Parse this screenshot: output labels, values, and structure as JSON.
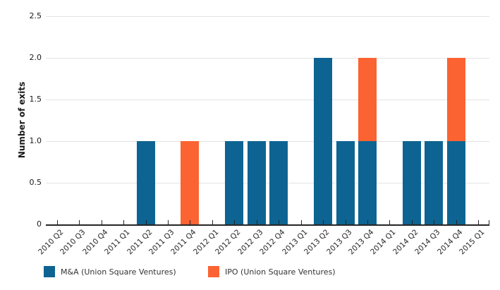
{
  "chart_data": {
    "type": "bar",
    "stacked": true,
    "title": "",
    "xlabel": "",
    "ylabel": "Number of exits",
    "ylim": [
      0,
      2.5
    ],
    "yticks": [
      0,
      0.5,
      1,
      1.5,
      2,
      2.5
    ],
    "ytick_labels": [
      "0",
      "0.5",
      "1.0",
      "1.5",
      "2.0",
      "2.5"
    ],
    "grid": true,
    "legend_position": "bottom",
    "categories": [
      "2010 Q2",
      "2010 Q3",
      "2010 Q4",
      "2011 Q1",
      "2011 Q2",
      "2011 Q3",
      "2011 Q4",
      "2012 Q1",
      "2012 Q2",
      "2012 Q3",
      "2012 Q4",
      "2013 Q1",
      "2013 Q2",
      "2013 Q3",
      "2013 Q4",
      "2014 Q1",
      "2014 Q2",
      "2014 Q3",
      "2014 Q4",
      "2015 Q1"
    ],
    "series": [
      {
        "key": "mna",
        "name": "M&A (Union Square Ventures)",
        "color": "#0D6492",
        "values": [
          0,
          0,
          0,
          0,
          1,
          0,
          0,
          0,
          1,
          1,
          1,
          0,
          2,
          1,
          1,
          0,
          1,
          1,
          1,
          0
        ]
      },
      {
        "key": "ipo",
        "name": "IPO (Union Square Ventures)",
        "color": "#FC6332",
        "values": [
          0,
          0,
          0,
          0,
          0,
          0,
          1,
          0,
          0,
          0,
          0,
          0,
          0,
          0,
          1,
          0,
          0,
          0,
          1,
          0
        ]
      }
    ],
    "colors": {
      "axis": "#262626",
      "grid": "#E3E3E3",
      "tick_text": "#1A1A1A"
    }
  }
}
